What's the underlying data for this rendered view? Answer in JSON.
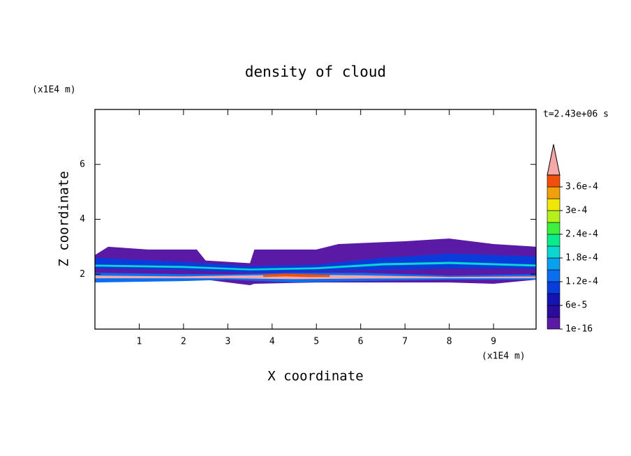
{
  "chart_data": {
    "type": "contour",
    "title": "density of cloud",
    "x_label": "X coordinate",
    "y_label": "Z coordinate",
    "x_unit": "(x1E4 m)",
    "y_unit": "(x1E4 m)",
    "annotation": "t=2.43e+06 s",
    "xlim": [
      0,
      9.96
    ],
    "ylim": [
      0,
      8
    ],
    "xticks": [
      1,
      2,
      3,
      4,
      5,
      6,
      7,
      8,
      9
    ],
    "yticks": [
      2,
      4,
      6
    ],
    "levels": [
      1e-16,
      3e-05,
      6e-05,
      9e-05,
      0.00012,
      0.00015,
      0.00018,
      0.00021,
      0.00024,
      0.00027,
      0.0003,
      0.00033,
      0.00036,
      0.00039
    ],
    "colors": [
      "#5b1aa6",
      "#2a0c9c",
      "#1414b4",
      "#0a3cdc",
      "#0a6ef0",
      "#0aa0f0",
      "#0ad8d0",
      "#0aeb8c",
      "#3cf03c",
      "#b4f01e",
      "#f0e60a",
      "#f0a00a",
      "#f0500a"
    ],
    "over_color": "#f4a8a8",
    "colorbar_ticks": [
      {
        "value": 1e-16,
        "label": "1e-16"
      },
      {
        "value": 6e-05,
        "label": "6e-5"
      },
      {
        "value": 0.00012,
        "label": "1.2e-4"
      },
      {
        "value": 0.00018,
        "label": "1.8e-4"
      },
      {
        "value": 0.00024,
        "label": "2.4e-4"
      },
      {
        "value": 0.0003,
        "label": "3e-4"
      },
      {
        "value": 0.00036,
        "label": "3.6e-4"
      }
    ],
    "regions": [
      {
        "value": 1e-16,
        "x": [
          0,
          0.3,
          1.2,
          2.3,
          2.5,
          3.5,
          3.6,
          5,
          5.5,
          7,
          8,
          9,
          9.96
        ],
        "top": [
          2.7,
          3.0,
          2.9,
          2.9,
          2.5,
          2.4,
          2.9,
          2.9,
          3.1,
          3.2,
          3.3,
          3.1,
          3.0
        ],
        "bottom": [
          1.75,
          1.75,
          1.8,
          1.8,
          1.8,
          1.6,
          1.65,
          1.7,
          1.7,
          1.7,
          1.7,
          1.65,
          1.8
        ]
      },
      {
        "value": 9e-05,
        "x": [
          0,
          2,
          3.5,
          5,
          6.5,
          8,
          9.96
        ],
        "top": [
          2.6,
          2.45,
          2.3,
          2.35,
          2.6,
          2.75,
          2.65
        ],
        "bottom": [
          2.2,
          2.15,
          2.05,
          2.1,
          2.15,
          2.2,
          2.2
        ]
      },
      {
        "value": 0.0002,
        "x": [
          0,
          2,
          3.5,
          5,
          6.5,
          8,
          9.96
        ],
        "top": [
          2.35,
          2.3,
          2.2,
          2.25,
          2.4,
          2.45,
          2.35
        ],
        "bottom": [
          2.28,
          2.23,
          2.14,
          2.18,
          2.32,
          2.37,
          2.28
        ]
      },
      {
        "value": 0.00012,
        "x": [
          0,
          2,
          3,
          4.5,
          6,
          8,
          9.96
        ],
        "top": [
          2.05,
          2.0,
          2.0,
          2.05,
          2.05,
          1.95,
          2.0
        ],
        "bottom": [
          1.7,
          1.75,
          1.8,
          1.7,
          1.75,
          1.8,
          1.8
        ]
      },
      {
        "value": 0.0004,
        "x": [
          0,
          2,
          3,
          4.5,
          6,
          8,
          9.96
        ],
        "top": [
          1.95,
          1.92,
          1.95,
          1.98,
          1.96,
          1.9,
          1.92
        ],
        "bottom": [
          1.85,
          1.85,
          1.85,
          1.82,
          1.84,
          1.85,
          1.85
        ]
      },
      {
        "value": 0.00037,
        "x": [
          3.8,
          4.3,
          4.8,
          5.3
        ],
        "top": [
          1.98,
          2.02,
          2.0,
          1.97
        ],
        "bottom": [
          1.9,
          1.92,
          1.9,
          1.9
        ]
      }
    ]
  }
}
